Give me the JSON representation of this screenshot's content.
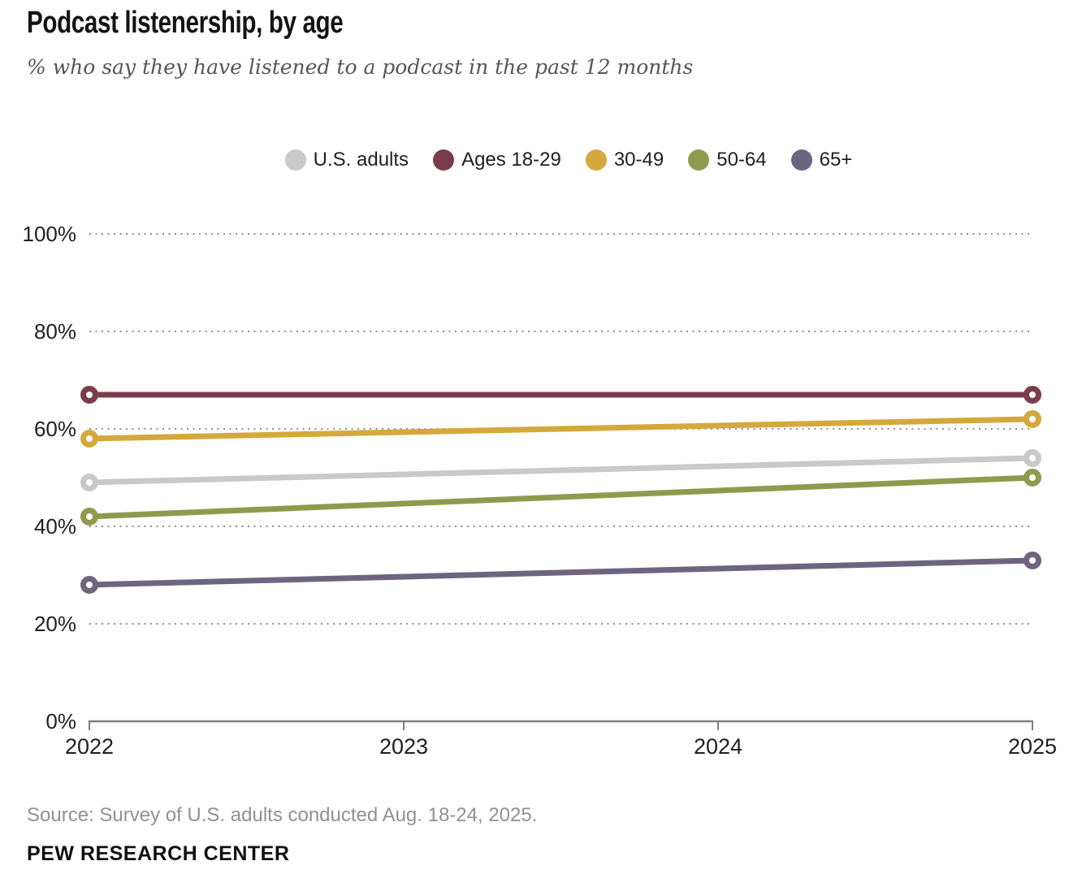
{
  "chart_data": {
    "type": "line",
    "title": "Podcast listenership, by age",
    "subtitle": "% who say they have listened to a podcast in the past 12 months",
    "x": [
      2022,
      2025
    ],
    "xlim": [
      2022,
      2025
    ],
    "x_tick_labels": [
      "2022",
      "2023",
      "2024",
      "2025"
    ],
    "y_tick_labels": [
      "100%",
      "80%",
      "60%",
      "40%",
      "20%",
      "0%"
    ],
    "y_tick_values": [
      100,
      80,
      60,
      40,
      20,
      0
    ],
    "ylim": [
      0,
      100
    ],
    "grid": "horizontal-dotted",
    "legend_position": "top-center",
    "series": [
      {
        "name": "U.S. adults",
        "color": "#c9c9c9",
        "values": [
          49,
          54
        ]
      },
      {
        "name": "Ages 18-29",
        "color": "#7a3c4b",
        "values": [
          67,
          67
        ]
      },
      {
        "name": "30-49",
        "color": "#d4a83c",
        "values": [
          58,
          62
        ]
      },
      {
        "name": "50-64",
        "color": "#8f9a4e",
        "values": [
          42,
          50
        ]
      },
      {
        "name": "65+",
        "color": "#6e6480",
        "values": [
          28,
          33
        ]
      }
    ]
  },
  "colors": {
    "gridline": "#8f8f8f",
    "axis": "#7f7f7f"
  },
  "footer": {
    "source": "Source: Survey of U.S. adults conducted Aug. 18-24, 2025.",
    "org": "PEW RESEARCH CENTER"
  }
}
